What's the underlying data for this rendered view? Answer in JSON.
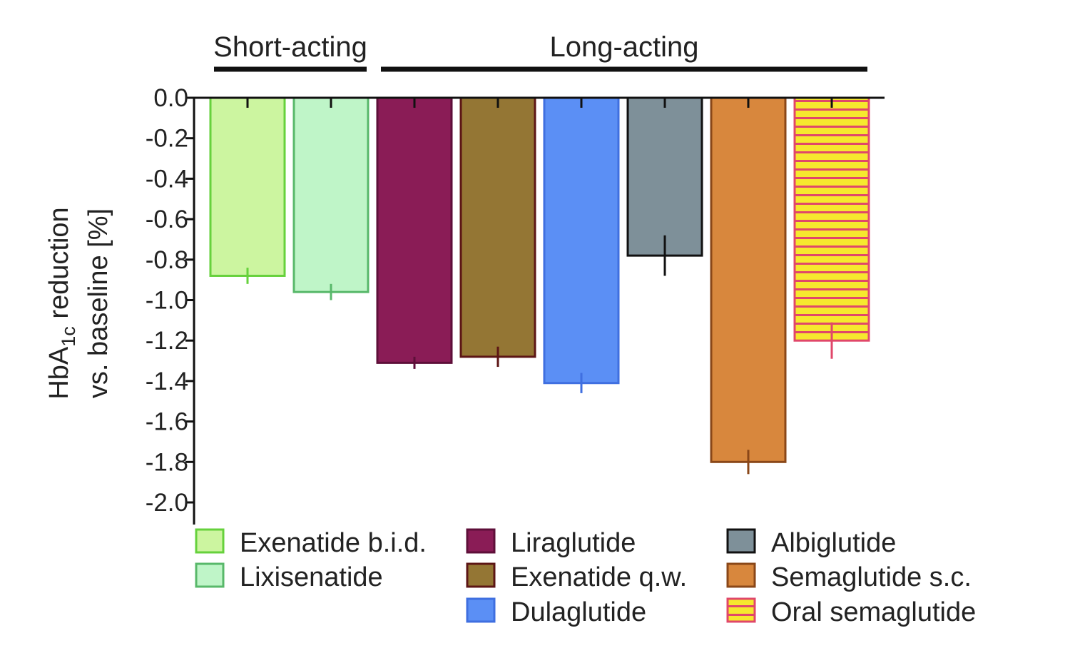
{
  "chart_data": {
    "type": "bar",
    "title": "",
    "xlabel": "",
    "ylabel": {
      "line1_pre": "HbA",
      "line1_sub": "1c",
      "line1_post": " reduction",
      "line2": "vs. baseline [%]"
    },
    "ylim": [
      -2.1,
      0.0
    ],
    "yticks": [
      0.0,
      -0.2,
      -0.4,
      -0.6,
      -0.8,
      -1.0,
      -1.2,
      -1.4,
      -1.6,
      -1.8,
      -2.0
    ],
    "ytick_labels": [
      "0.0",
      "-0.2",
      "-0.4",
      "-0.6",
      "-0.8",
      "-1.0",
      "-1.2",
      "-1.4",
      "-1.6",
      "-1.8",
      "-2.0"
    ],
    "grid": false,
    "legend_position": "bottom",
    "groups": [
      {
        "label": "Short-acting",
        "first": 0,
        "last": 1
      },
      {
        "label": "Long-acting",
        "first": 2,
        "last": 7
      }
    ],
    "series": [
      {
        "name": "Exenatide b.i.d.",
        "value": -0.88,
        "error": 0.04,
        "fill": "#ccf5a0",
        "stroke": "#66d13c",
        "pattern": "none"
      },
      {
        "name": "Lixisenatide",
        "value": -0.96,
        "error": 0.04,
        "fill": "#bff5c8",
        "stroke": "#58b86a",
        "pattern": "none"
      },
      {
        "name": "Liraglutide",
        "value": -1.31,
        "error": 0.03,
        "fill": "#8a1c56",
        "stroke": "#5e0f39",
        "pattern": "none"
      },
      {
        "name": "Exenatide q.w.",
        "value": -1.28,
        "error": 0.05,
        "fill": "#947634",
        "stroke": "#5c1515",
        "pattern": "none"
      },
      {
        "name": "Dulaglutide",
        "value": -1.41,
        "error": 0.05,
        "fill": "#5b8ff5",
        "stroke": "#3f6fe0",
        "pattern": "none"
      },
      {
        "name": "Albiglutide",
        "value": -0.78,
        "error": 0.1,
        "fill": "#7e9099",
        "stroke": "#111111",
        "pattern": "none"
      },
      {
        "name": "Semaglutide s.c.",
        "value": -1.8,
        "error": 0.06,
        "fill": "#d8873d",
        "stroke": "#8a4718",
        "pattern": "none"
      },
      {
        "name": "Oral semaglutide",
        "value": -1.2,
        "error": 0.09,
        "fill": "#f6e82e",
        "stroke": "#e0476a",
        "pattern": "horizontal-stripes"
      }
    ]
  }
}
